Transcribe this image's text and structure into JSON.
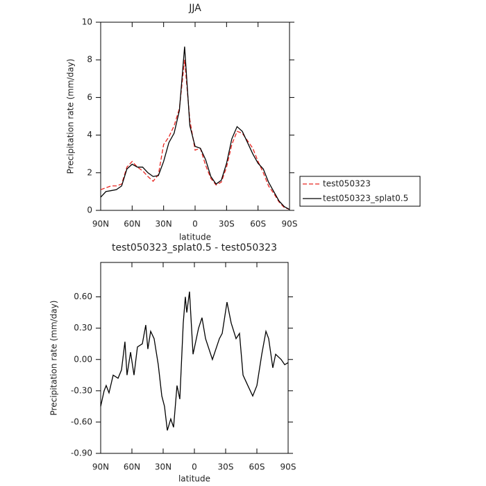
{
  "chart_data": [
    {
      "type": "line",
      "title": "JJA",
      "xlabel": "latitude",
      "ylabel": "Precipitation rate (mm/day)",
      "x": [
        90,
        85,
        80,
        75,
        70,
        65,
        60,
        55,
        50,
        45,
        40,
        35,
        30,
        25,
        20,
        15,
        10,
        5,
        0,
        -5,
        -10,
        -15,
        -20,
        -25,
        -30,
        -35,
        -40,
        -45,
        -50,
        -55,
        -60,
        -65,
        -70,
        -75,
        -80,
        -85,
        -90
      ],
      "series": [
        {
          "name": "test050323",
          "color": "#e8241f",
          "linestyle": "dashed",
          "values": [
            1.1,
            1.2,
            1.3,
            1.3,
            1.4,
            2.3,
            2.6,
            2.3,
            2.1,
            1.8,
            1.55,
            1.9,
            3.5,
            3.9,
            4.5,
            5.4,
            8.0,
            4.8,
            3.2,
            3.3,
            2.4,
            1.7,
            1.35,
            1.5,
            2.3,
            3.5,
            4.2,
            4.1,
            3.7,
            3.3,
            2.6,
            2.0,
            1.3,
            0.9,
            0.45,
            0.15,
            0.05
          ]
        },
        {
          "name": "test050323_splat0.5",
          "color": "#000000",
          "linestyle": "solid",
          "values": [
            0.7,
            1.0,
            1.05,
            1.1,
            1.3,
            2.2,
            2.45,
            2.3,
            2.3,
            2.0,
            1.8,
            1.85,
            2.6,
            3.6,
            4.1,
            5.3,
            8.7,
            4.5,
            3.4,
            3.3,
            2.7,
            1.8,
            1.4,
            1.6,
            2.5,
            3.8,
            4.45,
            4.2,
            3.6,
            3.0,
            2.5,
            2.2,
            1.5,
            1.0,
            0.5,
            0.2,
            0.05
          ]
        }
      ],
      "xlim": [
        90,
        -90
      ],
      "xticks": [
        {
          "value": 90,
          "label": "90N"
        },
        {
          "value": 60,
          "label": "60N"
        },
        {
          "value": 30,
          "label": "30N"
        },
        0,
        {
          "value": -30,
          "label": "30S"
        },
        {
          "value": -60,
          "label": "60S"
        },
        {
          "value": -90,
          "label": "90S"
        }
      ],
      "ylim": [
        0,
        10
      ],
      "yticks": [
        0,
        2,
        4,
        6,
        8,
        10
      ],
      "legend": "right"
    },
    {
      "type": "line",
      "title": "test050323_splat0.5 - test050323",
      "xlabel": "latitude",
      "ylabel": "Precipitation rate (mm/day)",
      "x": [
        90,
        86.7,
        84.7,
        82,
        78,
        73.3,
        70,
        66.7,
        64.7,
        61.3,
        58,
        54.7,
        50,
        46.7,
        44.7,
        42,
        38.7,
        34.7,
        31.3,
        28.7,
        26,
        22.7,
        20,
        16.7,
        14,
        10.7,
        8.7,
        7.3,
        4.7,
        1.3,
        -4,
        -7.3,
        -10.7,
        -17.3,
        -24,
        -26.7,
        -31.3,
        -35.3,
        -40,
        -43.3,
        -46.7,
        -51.3,
        -56,
        -60,
        -64.7,
        -68.7,
        -71.3,
        -75.3,
        -78,
        -83.3,
        -86.7,
        -90
      ],
      "series": [
        {
          "name": "test050323_splat0.5 - test050323",
          "color": "#000000",
          "linestyle": "solid",
          "values": [
            -0.45,
            -0.3,
            -0.25,
            -0.32,
            -0.15,
            -0.18,
            -0.1,
            0.17,
            -0.15,
            0.07,
            -0.15,
            0.12,
            0.15,
            0.33,
            0.1,
            0.27,
            0.2,
            -0.05,
            -0.35,
            -0.45,
            -0.68,
            -0.57,
            -0.65,
            -0.25,
            -0.38,
            0.35,
            0.6,
            0.45,
            0.65,
            0.05,
            0.3,
            0.4,
            0.2,
            0.0,
            0.2,
            0.25,
            0.55,
            0.35,
            0.2,
            0.25,
            -0.15,
            -0.25,
            -0.35,
            -0.25,
            0.05,
            0.27,
            0.2,
            -0.08,
            0.05,
            0.0,
            -0.05,
            -0.03
          ]
        }
      ],
      "xlim": [
        90,
        -90
      ],
      "xticks": [
        {
          "value": 90,
          "label": "90N"
        },
        {
          "value": 60,
          "label": "60N"
        },
        {
          "value": 30,
          "label": "30N"
        },
        0,
        {
          "value": -30,
          "label": "30S"
        },
        {
          "value": -60,
          "label": "60S"
        },
        {
          "value": -90,
          "label": "90S"
        }
      ],
      "ylim": [
        -0.9,
        0.93
      ],
      "yticks": [
        {
          "value": 0.6,
          "label": "0.60"
        },
        {
          "value": 0.3,
          "label": "0.30"
        },
        {
          "value": 0,
          "label": "0.00"
        },
        {
          "value": -0.3,
          "label": "-0.30"
        },
        {
          "value": -0.6,
          "label": "-0.60"
        },
        {
          "value": -0.9,
          "label": "-0.90"
        }
      ]
    }
  ]
}
